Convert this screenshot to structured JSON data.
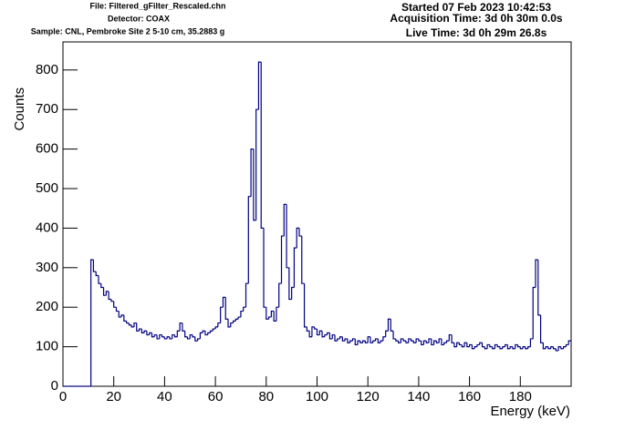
{
  "chart_data": {
    "type": "histogram",
    "header": {
      "file": "File: Filtered_gFilter_Rescaled.chn",
      "detector": "Detector: COAX",
      "sample": "Sample: CNL, Pembroke Site 2 5-10 cm, 35.2883 g",
      "started": "Started 07 Feb 2023 10:42:53",
      "acquisition": "Acquisition Time: 3d 0h 30m 0.0s",
      "live": "Live Time: 3d 0h 29m 26.8s"
    },
    "x_label": "Energy (keV)",
    "y_label": "Counts",
    "color": "#000080",
    "xlim": [
      0,
      200
    ],
    "ylim": [
      0,
      871
    ],
    "xticks": [
      0,
      20,
      40,
      60,
      80,
      100,
      120,
      140,
      160,
      180
    ],
    "yticks": [
      0,
      100,
      200,
      300,
      400,
      500,
      600,
      700,
      800
    ],
    "bins": [
      0,
      1,
      2,
      3,
      4,
      5,
      6,
      7,
      8,
      9,
      10,
      11,
      12,
      13,
      14,
      15,
      16,
      17,
      18,
      19,
      20,
      21,
      22,
      23,
      24,
      25,
      26,
      27,
      28,
      29,
      30,
      31,
      32,
      33,
      34,
      35,
      36,
      37,
      38,
      39,
      40,
      41,
      42,
      43,
      44,
      45,
      46,
      47,
      48,
      49,
      50,
      51,
      52,
      53,
      54,
      55,
      56,
      57,
      58,
      59,
      60,
      61,
      62,
      63,
      64,
      65,
      66,
      67,
      68,
      69,
      70,
      71,
      72,
      73,
      74,
      75,
      76,
      77,
      78,
      79,
      80,
      81,
      82,
      83,
      84,
      85,
      86,
      87,
      88,
      89,
      90,
      91,
      92,
      93,
      94,
      95,
      96,
      97,
      98,
      99,
      100,
      101,
      102,
      103,
      104,
      105,
      106,
      107,
      108,
      109,
      110,
      111,
      112,
      113,
      114,
      115,
      116,
      117,
      118,
      119,
      120,
      121,
      122,
      123,
      124,
      125,
      126,
      127,
      128,
      129,
      130,
      131,
      132,
      133,
      134,
      135,
      136,
      137,
      138,
      139,
      140,
      141,
      142,
      143,
      144,
      145,
      146,
      147,
      148,
      149,
      150,
      151,
      152,
      153,
      154,
      155,
      156,
      157,
      158,
      159,
      160,
      161,
      162,
      163,
      164,
      165,
      166,
      167,
      168,
      169,
      170,
      171,
      172,
      173,
      174,
      175,
      176,
      177,
      178,
      179,
      180,
      181,
      182,
      183,
      184,
      185,
      186,
      187,
      188,
      189,
      190,
      191,
      192,
      193,
      194,
      195,
      196,
      197,
      198,
      199,
      200
    ],
    "counts": [
      0,
      0,
      0,
      0,
      0,
      0,
      0,
      0,
      0,
      0,
      0,
      320,
      290,
      280,
      260,
      250,
      230,
      240,
      220,
      215,
      200,
      190,
      175,
      180,
      165,
      160,
      155,
      150,
      160,
      140,
      145,
      135,
      140,
      130,
      135,
      125,
      130,
      120,
      130,
      125,
      120,
      125,
      120,
      130,
      125,
      140,
      160,
      140,
      125,
      120,
      130,
      125,
      115,
      120,
      135,
      140,
      130,
      135,
      140,
      145,
      150,
      160,
      200,
      225,
      170,
      150,
      160,
      165,
      170,
      175,
      190,
      200,
      260,
      480,
      600,
      420,
      700,
      820,
      400,
      200,
      170,
      175,
      190,
      165,
      200,
      260,
      380,
      460,
      300,
      220,
      250,
      350,
      400,
      380,
      260,
      150,
      140,
      125,
      150,
      145,
      130,
      140,
      125,
      130,
      135,
      120,
      130,
      115,
      120,
      125,
      115,
      120,
      110,
      115,
      120,
      105,
      115,
      110,
      115,
      110,
      125,
      110,
      115,
      120,
      110,
      115,
      125,
      140,
      170,
      140,
      120,
      115,
      110,
      120,
      115,
      110,
      120,
      115,
      110,
      120,
      115,
      105,
      115,
      110,
      120,
      105,
      115,
      110,
      120,
      105,
      110,
      115,
      130,
      110,
      100,
      110,
      105,
      100,
      110,
      100,
      105,
      95,
      100,
      105,
      110,
      100,
      95,
      105,
      100,
      95,
      105,
      100,
      95,
      100,
      105,
      95,
      100,
      95,
      105,
      100,
      95,
      100,
      95,
      100,
      120,
      250,
      320,
      180,
      110,
      95,
      100,
      95,
      100,
      95,
      90,
      100,
      95,
      100,
      105,
      115
    ]
  }
}
